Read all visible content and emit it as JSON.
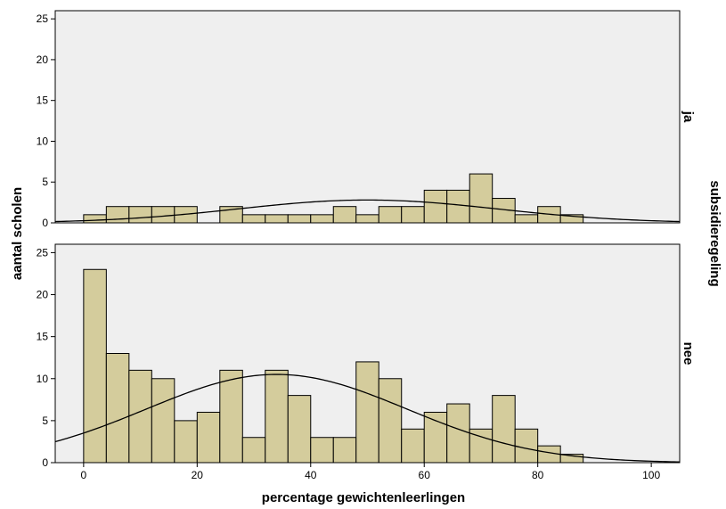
{
  "chart_data": {
    "type": "bar",
    "xlabel": "percentage gewichtenleerlingen",
    "ylabel": "aantal scholen",
    "panel_variable": "subsidieregeling",
    "xlim": [
      -5,
      105
    ],
    "ylim": [
      0,
      26
    ],
    "xticks": [
      0,
      20,
      40,
      60,
      80,
      100
    ],
    "yticks": [
      0,
      5,
      10,
      15,
      20,
      25
    ],
    "bin_width": 4,
    "bin_starts": [
      0,
      4,
      8,
      12,
      16,
      20,
      24,
      28,
      32,
      36,
      40,
      44,
      48,
      52,
      56,
      60,
      64,
      68,
      72,
      76,
      80,
      84
    ],
    "grid": false,
    "colors": {
      "bar_fill": "#d4cc9c",
      "bar_stroke": "#000000",
      "panel_bg": "#efefef",
      "curve": "#000000"
    },
    "panels": [
      {
        "label": "ja",
        "values": [
          1,
          2,
          2,
          2,
          2,
          0,
          2,
          1,
          1,
          1,
          1,
          2,
          1,
          2,
          2,
          4,
          4,
          6,
          3,
          1,
          2,
          1
        ],
        "normal_curve": {
          "mean": 50,
          "sd": 23,
          "peak": 2.8
        }
      },
      {
        "label": "nee",
        "values": [
          23,
          13,
          11,
          10,
          5,
          6,
          11,
          3,
          11,
          8,
          3,
          3,
          12,
          10,
          4,
          6,
          7,
          4,
          8,
          4,
          2,
          1
        ],
        "normal_curve": {
          "mean": 34,
          "sd": 23,
          "peak": 10.5
        }
      }
    ]
  }
}
